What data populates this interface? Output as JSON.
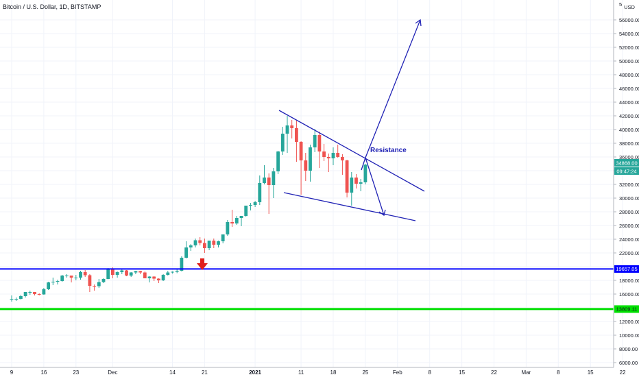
{
  "header": {
    "title": "Bitcoin / U.S. Dollar, 1D, BITSTAMP",
    "currency": "USD"
  },
  "chart_data": {
    "type": "candlestick",
    "title": "Bitcoin / U.S. Dollar, 1D, BITSTAMP",
    "xlabel": "",
    "ylabel": "",
    "ylim": [
      5500,
      57500
    ],
    "y_ticks": [
      "56000.00",
      "54000.00",
      "52000.00",
      "50000.00",
      "48000.00",
      "46000.00",
      "44000.00",
      "42000.00",
      "40000.00",
      "38000.00",
      "36000.00",
      "34000.00",
      "32000.00",
      "30000.00",
      "28000.00",
      "26000.00",
      "24000.00",
      "22000.00",
      "20000.00",
      "18000.00",
      "16000.00",
      "14000.00",
      "12000.00",
      "10000.00",
      "8000.00",
      "6000.00"
    ],
    "x_ticks": [
      {
        "label": "9",
        "date": "2020-11-09"
      },
      {
        "label": "16",
        "date": "2020-11-16"
      },
      {
        "label": "23",
        "date": "2020-11-23"
      },
      {
        "label": "Dec",
        "date": "2020-12-01"
      },
      {
        "label": "14",
        "date": "2020-12-14"
      },
      {
        "label": "21",
        "date": "2020-12-21"
      },
      {
        "label": "2021",
        "date": "2021-01-01",
        "bold": true
      },
      {
        "label": "11",
        "date": "2021-01-11"
      },
      {
        "label": "18",
        "date": "2021-01-18"
      },
      {
        "label": "25",
        "date": "2021-01-25"
      },
      {
        "label": "Feb",
        "date": "2021-02-01"
      },
      {
        "label": "8",
        "date": "2021-02-08"
      },
      {
        "label": "15",
        "date": "2021-02-15"
      },
      {
        "label": "22",
        "date": "2021-02-22"
      },
      {
        "label": "Mar",
        "date": "2021-03-01"
      },
      {
        "label": "8",
        "date": "2021-03-08"
      },
      {
        "label": "15",
        "date": "2021-03-15"
      },
      {
        "label": "22",
        "date": "2021-03-22"
      }
    ],
    "candles": [
      {
        "d": "2020-11-09",
        "o": 15300,
        "h": 15800,
        "l": 14900,
        "c": 15300
      },
      {
        "d": "2020-11-10",
        "o": 15300,
        "h": 15500,
        "l": 15000,
        "c": 15300
      },
      {
        "d": "2020-11-11",
        "o": 15300,
        "h": 15900,
        "l": 15200,
        "c": 15700
      },
      {
        "d": "2020-11-12",
        "o": 15700,
        "h": 16300,
        "l": 15500,
        "c": 16300
      },
      {
        "d": "2020-11-13",
        "o": 16300,
        "h": 16500,
        "l": 15900,
        "c": 16300
      },
      {
        "d": "2020-11-14",
        "o": 16300,
        "h": 16300,
        "l": 15800,
        "c": 16000
      },
      {
        "d": "2020-11-15",
        "o": 16000,
        "h": 16100,
        "l": 15800,
        "c": 15950
      },
      {
        "d": "2020-11-16",
        "o": 15950,
        "h": 16900,
        "l": 15900,
        "c": 16700
      },
      {
        "d": "2020-11-17",
        "o": 16700,
        "h": 17800,
        "l": 16600,
        "c": 17700
      },
      {
        "d": "2020-11-18",
        "o": 17700,
        "h": 18400,
        "l": 17300,
        "c": 17800
      },
      {
        "d": "2020-11-19",
        "o": 17800,
        "h": 18100,
        "l": 17400,
        "c": 17900
      },
      {
        "d": "2020-11-20",
        "o": 17900,
        "h": 18800,
        "l": 17800,
        "c": 18700
      },
      {
        "d": "2020-11-21",
        "o": 18700,
        "h": 18900,
        "l": 18400,
        "c": 18700
      },
      {
        "d": "2020-11-22",
        "o": 18700,
        "h": 18700,
        "l": 17700,
        "c": 18400
      },
      {
        "d": "2020-11-23",
        "o": 18400,
        "h": 18800,
        "l": 18000,
        "c": 18400
      },
      {
        "d": "2020-11-24",
        "o": 18400,
        "h": 19400,
        "l": 18100,
        "c": 19200
      },
      {
        "d": "2020-11-25",
        "o": 19200,
        "h": 19500,
        "l": 18500,
        "c": 18750
      },
      {
        "d": "2020-11-26",
        "o": 18750,
        "h": 18900,
        "l": 16300,
        "c": 17200
      },
      {
        "d": "2020-11-27",
        "o": 17200,
        "h": 17400,
        "l": 16500,
        "c": 17150
      },
      {
        "d": "2020-11-28",
        "o": 17150,
        "h": 18200,
        "l": 16900,
        "c": 17750
      },
      {
        "d": "2020-11-29",
        "o": 17750,
        "h": 18300,
        "l": 17600,
        "c": 18200
      },
      {
        "d": "2020-11-30",
        "o": 18200,
        "h": 19800,
        "l": 18150,
        "c": 19700
      },
      {
        "d": "2020-12-01",
        "o": 19700,
        "h": 19900,
        "l": 18300,
        "c": 18800
      },
      {
        "d": "2020-12-02",
        "o": 18800,
        "h": 19300,
        "l": 18400,
        "c": 19200
      },
      {
        "d": "2020-12-03",
        "o": 19200,
        "h": 19600,
        "l": 18900,
        "c": 19450
      },
      {
        "d": "2020-12-04",
        "o": 19450,
        "h": 19500,
        "l": 18600,
        "c": 18700
      },
      {
        "d": "2020-12-05",
        "o": 18700,
        "h": 19200,
        "l": 18500,
        "c": 19150
      },
      {
        "d": "2020-12-06",
        "o": 19150,
        "h": 19400,
        "l": 18900,
        "c": 19350
      },
      {
        "d": "2020-12-07",
        "o": 19350,
        "h": 19400,
        "l": 18900,
        "c": 19150
      },
      {
        "d": "2020-12-08",
        "o": 19150,
        "h": 19300,
        "l": 18300,
        "c": 18300
      },
      {
        "d": "2020-12-09",
        "o": 18300,
        "h": 18600,
        "l": 17700,
        "c": 18550
      },
      {
        "d": "2020-12-10",
        "o": 18550,
        "h": 18600,
        "l": 17900,
        "c": 18250
      },
      {
        "d": "2020-12-11",
        "o": 18250,
        "h": 18300,
        "l": 17600,
        "c": 18000
      },
      {
        "d": "2020-12-12",
        "o": 18000,
        "h": 18900,
        "l": 17900,
        "c": 18800
      },
      {
        "d": "2020-12-13",
        "o": 18800,
        "h": 19400,
        "l": 18700,
        "c": 19150
      },
      {
        "d": "2020-12-14",
        "o": 19150,
        "h": 19300,
        "l": 19000,
        "c": 19250
      },
      {
        "d": "2020-12-15",
        "o": 19250,
        "h": 19600,
        "l": 19050,
        "c": 19400
      },
      {
        "d": "2020-12-16",
        "o": 19400,
        "h": 21500,
        "l": 19300,
        "c": 21300
      },
      {
        "d": "2020-12-17",
        "o": 21300,
        "h": 23700,
        "l": 21200,
        "c": 22800
      },
      {
        "d": "2020-12-18",
        "o": 22800,
        "h": 23300,
        "l": 22300,
        "c": 23100
      },
      {
        "d": "2020-12-19",
        "o": 23100,
        "h": 24100,
        "l": 22800,
        "c": 23850
      },
      {
        "d": "2020-12-20",
        "o": 23850,
        "h": 24300,
        "l": 23100,
        "c": 23450
      },
      {
        "d": "2020-12-21",
        "o": 23450,
        "h": 24100,
        "l": 22000,
        "c": 22700
      },
      {
        "d": "2020-12-22",
        "o": 22700,
        "h": 23800,
        "l": 22400,
        "c": 23800
      },
      {
        "d": "2020-12-23",
        "o": 23800,
        "h": 24100,
        "l": 22700,
        "c": 23200
      },
      {
        "d": "2020-12-24",
        "o": 23200,
        "h": 23800,
        "l": 22800,
        "c": 23700
      },
      {
        "d": "2020-12-25",
        "o": 23700,
        "h": 24700,
        "l": 23400,
        "c": 24700
      },
      {
        "d": "2020-12-26",
        "o": 24700,
        "h": 26800,
        "l": 24500,
        "c": 26500
      },
      {
        "d": "2020-12-27",
        "o": 26500,
        "h": 28300,
        "l": 25800,
        "c": 26300
      },
      {
        "d": "2020-12-28",
        "o": 26300,
        "h": 27400,
        "l": 26100,
        "c": 27100
      },
      {
        "d": "2020-12-29",
        "o": 27100,
        "h": 27400,
        "l": 25900,
        "c": 27400
      },
      {
        "d": "2020-12-30",
        "o": 27400,
        "h": 28900,
        "l": 27300,
        "c": 28900
      },
      {
        "d": "2020-12-31",
        "o": 28900,
        "h": 29300,
        "l": 28200,
        "c": 29000
      },
      {
        "d": "2021-01-01",
        "o": 29000,
        "h": 29600,
        "l": 28700,
        "c": 29400
      },
      {
        "d": "2021-01-02",
        "o": 29400,
        "h": 33300,
        "l": 29000,
        "c": 32200
      },
      {
        "d": "2021-01-03",
        "o": 32200,
        "h": 34800,
        "l": 32000,
        "c": 33000
      },
      {
        "d": "2021-01-04",
        "o": 33000,
        "h": 33600,
        "l": 27700,
        "c": 31900
      },
      {
        "d": "2021-01-05",
        "o": 31900,
        "h": 34400,
        "l": 30000,
        "c": 33900
      },
      {
        "d": "2021-01-06",
        "o": 33900,
        "h": 36900,
        "l": 33500,
        "c": 36800
      },
      {
        "d": "2021-01-07",
        "o": 36800,
        "h": 40400,
        "l": 36300,
        "c": 39400
      },
      {
        "d": "2021-01-08",
        "o": 39400,
        "h": 42000,
        "l": 36600,
        "c": 40600
      },
      {
        "d": "2021-01-09",
        "o": 40600,
        "h": 41400,
        "l": 38700,
        "c": 40200
      },
      {
        "d": "2021-01-10",
        "o": 40200,
        "h": 41300,
        "l": 35300,
        "c": 38200
      },
      {
        "d": "2021-01-11",
        "o": 38200,
        "h": 38300,
        "l": 30500,
        "c": 35500
      },
      {
        "d": "2021-01-12",
        "o": 35500,
        "h": 36600,
        "l": 32500,
        "c": 34000
      },
      {
        "d": "2021-01-13",
        "o": 34000,
        "h": 37800,
        "l": 32400,
        "c": 37400
      },
      {
        "d": "2021-01-14",
        "o": 37400,
        "h": 40100,
        "l": 36700,
        "c": 39200
      },
      {
        "d": "2021-01-15",
        "o": 39200,
        "h": 39700,
        "l": 34400,
        "c": 36800
      },
      {
        "d": "2021-01-16",
        "o": 36800,
        "h": 37900,
        "l": 35400,
        "c": 36000
      },
      {
        "d": "2021-01-17",
        "o": 36000,
        "h": 36500,
        "l": 33800,
        "c": 35800
      },
      {
        "d": "2021-01-18",
        "o": 35800,
        "h": 37400,
        "l": 34800,
        "c": 36600
      },
      {
        "d": "2021-01-19",
        "o": 36600,
        "h": 37800,
        "l": 35900,
        "c": 36000
      },
      {
        "d": "2021-01-20",
        "o": 36000,
        "h": 36400,
        "l": 33400,
        "c": 35500
      },
      {
        "d": "2021-01-21",
        "o": 35500,
        "h": 35600,
        "l": 30100,
        "c": 30800
      },
      {
        "d": "2021-01-22",
        "o": 30800,
        "h": 33800,
        "l": 28900,
        "c": 33000
      },
      {
        "d": "2021-01-23",
        "o": 33000,
        "h": 33500,
        "l": 31400,
        "c": 32100
      },
      {
        "d": "2021-01-24",
        "o": 32100,
        "h": 32800,
        "l": 31000,
        "c": 32300
      },
      {
        "d": "2021-01-25",
        "o": 32300,
        "h": 35000,
        "l": 32000,
        "c": 34868
      }
    ],
    "horizontal_lines": [
      {
        "price": 19657.05,
        "label": "19657.05",
        "color": "#0000ff"
      },
      {
        "price": 13809.11,
        "label": "13809.11",
        "color": "#00cc00"
      }
    ],
    "last_price": {
      "label": "34868.00",
      "countdown": "09:47:24"
    },
    "annotations": [
      "Resistance"
    ]
  },
  "colors": {
    "up": "#26a69a",
    "down": "#ef5350",
    "drawing": "#2123b5",
    "support_blue": "#0000ff",
    "support_green": "#00cc00",
    "marker": "#e0201c"
  }
}
